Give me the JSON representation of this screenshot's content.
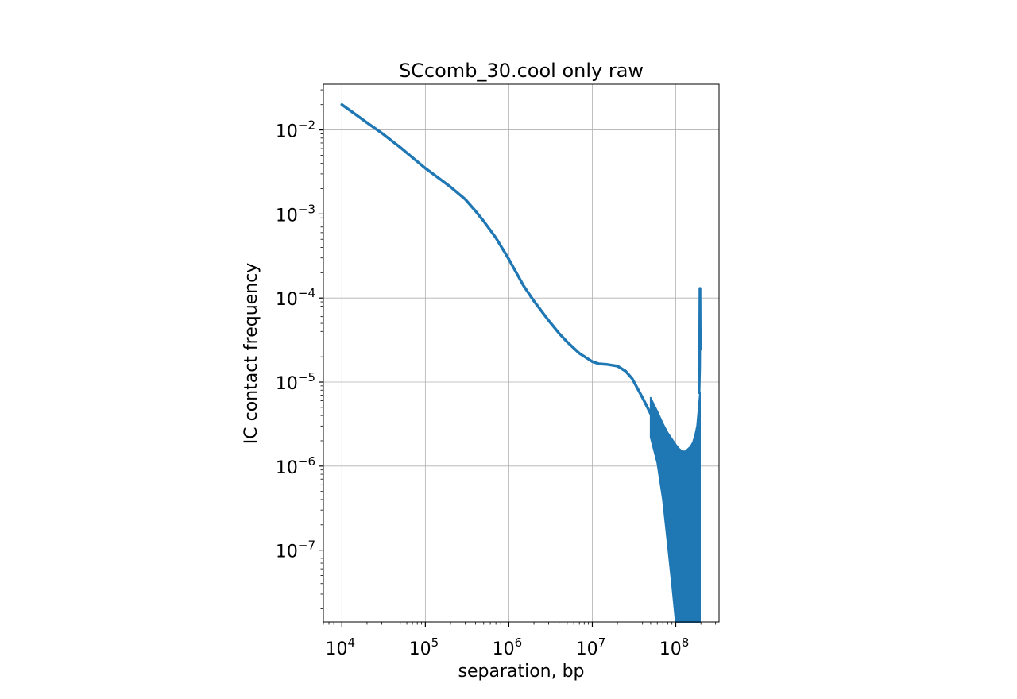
{
  "chart_data": {
    "type": "line",
    "title": "SCcomb_30.cool only raw",
    "xlabel": "separation, bp",
    "ylabel": "IC contact frequency",
    "xscale": "log",
    "yscale": "log",
    "xlim": [
      6000,
      330000000
    ],
    "ylim": [
      1.4e-08,
      0.035
    ],
    "grid": true,
    "x_ticks": [
      {
        "base": "10",
        "exp": "4",
        "value": 10000
      },
      {
        "base": "10",
        "exp": "5",
        "value": 100000
      },
      {
        "base": "10",
        "exp": "6",
        "value": 1000000
      },
      {
        "base": "10",
        "exp": "7",
        "value": 10000000
      },
      {
        "base": "10",
        "exp": "8",
        "value": 100000000
      }
    ],
    "y_ticks": [
      {
        "base": "10",
        "exp": "−2",
        "value": 0.01
      },
      {
        "base": "10",
        "exp": "−3",
        "value": 0.001
      },
      {
        "base": "10",
        "exp": "−4",
        "value": 0.0001
      },
      {
        "base": "10",
        "exp": "−5",
        "value": 1e-05
      },
      {
        "base": "10",
        "exp": "−6",
        "value": 1e-06
      },
      {
        "base": "10",
        "exp": "−7",
        "value": 1e-07
      }
    ],
    "series": [
      {
        "color": "#1f77b4",
        "x": [
          10000,
          15000,
          20000,
          30000,
          50000,
          70000,
          100000,
          150000,
          200000,
          300000,
          400000,
          500000,
          700000,
          1000000,
          1500000,
          2000000,
          3000000,
          4000000,
          5000000,
          7000000,
          10000000,
          12000000,
          15000000,
          20000000,
          25000000,
          30000000,
          40000000,
          50000000,
          60000000,
          70000000,
          80000000,
          90000000,
          100000000
        ],
        "y": [
          0.02,
          0.015,
          0.0122,
          0.0092,
          0.0062,
          0.0047,
          0.0035,
          0.0026,
          0.0021,
          0.0015,
          0.00108,
          0.00082,
          0.00052,
          0.00029,
          0.00014,
          9.2e-05,
          5.4e-05,
          3.8e-05,
          3e-05,
          2.2e-05,
          1.75e-05,
          1.65e-05,
          1.62e-05,
          1.55e-05,
          1.35e-05,
          1.1e-05,
          6.5e-06,
          4.2e-06,
          2.8e-06,
          1.8e-06,
          1.3e-06,
          1.5e-06,
          1.1e-06
        ],
        "noise_band": {
          "x": [
            50000000,
            60000000,
            70000000,
            80000000,
            90000000,
            100000000,
            110000000,
            120000000,
            130000000,
            140000000,
            150000000,
            160000000,
            170000000,
            180000000,
            190000000,
            195000000
          ],
          "upper": [
            6.5e-06,
            4.5e-06,
            3.2e-06,
            2.5e-06,
            2.1e-06,
            1.8e-06,
            1.6e-06,
            1.5e-06,
            1.5e-06,
            1.6e-06,
            1.7e-06,
            1.9e-06,
            2.3e-06,
            3e-06,
            5.5e-06,
            7.5e-06
          ],
          "lower": [
            2.2e-06,
            1.1e-06,
            4e-07,
            1.2e-07,
            4e-08,
            1e-08,
            1e-08,
            1e-08,
            1e-08,
            1e-08,
            1e-08,
            1e-08,
            1e-08,
            1e-08,
            1e-08,
            1e-08
          ]
        },
        "end_spike": {
          "x": [
            190000000,
            193000000,
            195000000,
            196000000,
            197000000
          ],
          "y": [
            7.5e-06,
            1.5e-05,
            0.00013,
            4.5e-05,
            2.5e-05
          ]
        }
      }
    ]
  }
}
